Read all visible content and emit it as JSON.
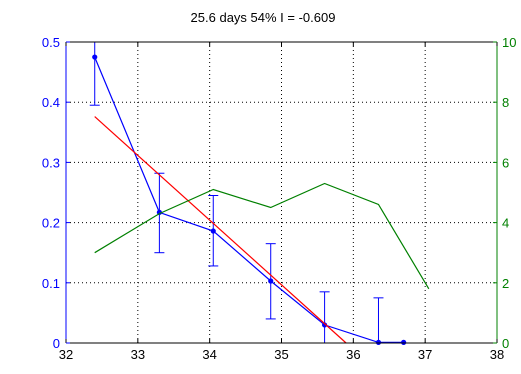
{
  "chart_data": {
    "type": "line",
    "title": "25.6 days  54% I = -0.609",
    "xlabel": "",
    "ylabel_left": "",
    "ylabel_right": "",
    "xlim": [
      32,
      38
    ],
    "ylim_left": [
      0,
      0.5
    ],
    "ylim_right": [
      0,
      10
    ],
    "x_ticks": [
      32,
      33,
      34,
      35,
      36,
      37,
      38
    ],
    "y_left_ticks": [
      0,
      0.1,
      0.2,
      0.3,
      0.4,
      0.5
    ],
    "y_right_ticks": [
      0,
      2,
      4,
      6,
      8,
      10
    ],
    "grid": true,
    "legend": "none",
    "series": [
      {
        "axis": "left",
        "color": "#0000ff",
        "marker": "dot",
        "x": [
          32.4,
          33.3,
          34.05,
          34.85,
          35.6,
          36.35,
          36.7
        ],
        "y": [
          0.475,
          0.217,
          0.186,
          0.103,
          0.03,
          0.001,
          0.001
        ],
        "error_low": [
          0.395,
          0.15,
          0.128,
          0.04,
          0.0,
          0.0,
          null
        ],
        "error_high": [
          0.5,
          0.282,
          0.245,
          0.165,
          0.085,
          0.075,
          null
        ]
      },
      {
        "axis": "left",
        "color": "#ff0000",
        "x": [
          32.4,
          35.9
        ],
        "y": [
          0.376,
          0.0
        ]
      },
      {
        "axis": "right",
        "color": "#008000",
        "x": [
          32.4,
          33.3,
          34.05,
          34.85,
          35.6,
          36.35,
          37.05
        ],
        "y": [
          3.0,
          4.3,
          5.1,
          4.5,
          5.3,
          4.6,
          1.8
        ]
      }
    ],
    "colors": {
      "left_axis": "#0000ff",
      "right_axis": "#008000",
      "grid": "#000000",
      "frame": "#000000"
    }
  }
}
